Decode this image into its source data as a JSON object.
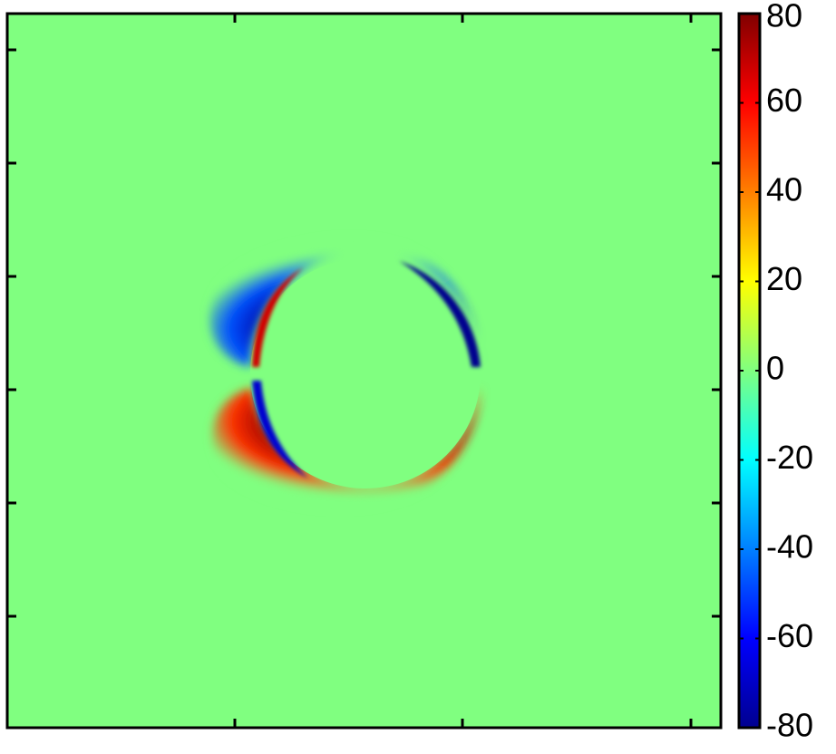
{
  "chart_data": {
    "type": "heatmap",
    "colormap": "jet",
    "clim": [
      -80,
      80
    ],
    "cticks": [
      -80,
      -60,
      -40,
      -20,
      0,
      20,
      40,
      60,
      80
    ]
  }
}
